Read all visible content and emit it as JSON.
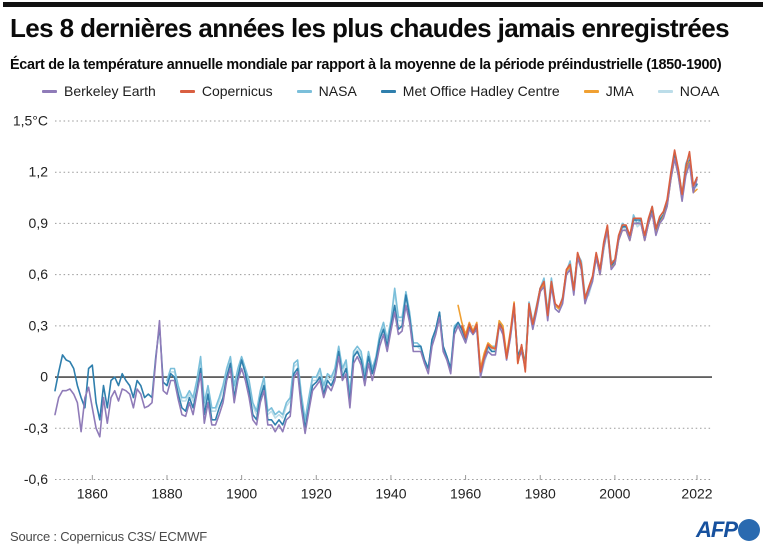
{
  "footer": {
    "source": "Source : Copernicus C3S/ ECMWF",
    "logo_text": "AFP"
  },
  "colors": {
    "grid": "#9a9a9a",
    "zero_line": "#2b2b2b",
    "tick_text": "#222222",
    "afp_blue": "#2a6ab0"
  },
  "chart_data": {
    "type": "line",
    "title": "Les 8 dernières années les plus chaudes jamais enregistrées",
    "subtitle": "Écart de la température annuelle mondiale par rapport à la moyenne de la période préindustrielle (1850-1900)",
    "unit": "°C",
    "x_range": [
      1850,
      2022
    ],
    "y_range": [
      -0.6,
      1.5
    ],
    "grid": "dotted-horizontal",
    "legend_position": "top",
    "y_ticks": [
      {
        "value": 1.5,
        "label": "1,5°C"
      },
      {
        "value": 1.2,
        "label": "1,2"
      },
      {
        "value": 0.9,
        "label": "0,9"
      },
      {
        "value": 0.6,
        "label": "0,6"
      },
      {
        "value": 0.3,
        "label": "0,3"
      },
      {
        "value": 0,
        "label": "0"
      },
      {
        "value": -0.3,
        "label": "-0,3"
      },
      {
        "value": -0.6,
        "label": "-0,6"
      }
    ],
    "x_ticks": [
      {
        "value": 1860,
        "label": "1860"
      },
      {
        "value": 1880,
        "label": "1880"
      },
      {
        "value": 1900,
        "label": "1900"
      },
      {
        "value": 1920,
        "label": "1920"
      },
      {
        "value": 1940,
        "label": "1940"
      },
      {
        "value": 1960,
        "label": "1960"
      },
      {
        "value": 1980,
        "label": "1980"
      },
      {
        "value": 2000,
        "label": "2000"
      },
      {
        "value": 2022,
        "label": "2022"
      }
    ],
    "draw_order": [
      "NOAA",
      "NASA",
      "Met Office Hadley Centre",
      "JMA",
      "Berkeley Earth",
      "Copernicus"
    ],
    "series": [
      {
        "name": "Berkeley Earth",
        "color": "#8f7bb8",
        "start_year": 1850,
        "values": [
          -0.22,
          -0.12,
          -0.08,
          -0.08,
          -0.07,
          -0.1,
          -0.15,
          -0.32,
          -0.12,
          -0.06,
          -0.18,
          -0.3,
          -0.35,
          -0.12,
          -0.27,
          -0.12,
          -0.08,
          -0.14,
          -0.07,
          -0.08,
          -0.1,
          -0.18,
          -0.07,
          -0.1,
          -0.18,
          -0.17,
          -0.15,
          0.1,
          0.33,
          -0.08,
          -0.1,
          -0.02,
          -0.02,
          -0.13,
          -0.22,
          -0.23,
          -0.15,
          -0.22,
          -0.1,
          0.02,
          -0.27,
          -0.15,
          -0.28,
          -0.28,
          -0.22,
          -0.15,
          -0.02,
          0.05,
          -0.15,
          -0.02,
          0.05,
          -0.02,
          -0.12,
          -0.25,
          -0.28,
          -0.15,
          -0.08,
          -0.28,
          -0.28,
          -0.32,
          -0.28,
          -0.32,
          -0.25,
          -0.23,
          0.0,
          0.03,
          -0.18,
          -0.33,
          -0.2,
          -0.08,
          -0.05,
          -0.02,
          -0.12,
          -0.05,
          -0.08,
          -0.02,
          0.12,
          -0.02,
          0.02,
          -0.18,
          0.08,
          0.12,
          0.07,
          -0.05,
          0.08,
          -0.02,
          0.07,
          0.18,
          0.25,
          0.15,
          0.27,
          0.38,
          0.25,
          0.27,
          0.42,
          0.32,
          0.15,
          0.15,
          0.15,
          0.08,
          0.02,
          0.18,
          0.25,
          0.35,
          0.15,
          0.1,
          0.02,
          0.25,
          0.3,
          0.25,
          0.2,
          0.28,
          0.25,
          0.28,
          0.0,
          0.1,
          0.15,
          0.13,
          0.13,
          0.3,
          0.25,
          0.1,
          0.23,
          0.4,
          0.1,
          0.15,
          0.05,
          0.4,
          0.28,
          0.38,
          0.5,
          0.53,
          0.33,
          0.53,
          0.4,
          0.38,
          0.43,
          0.6,
          0.63,
          0.48,
          0.7,
          0.63,
          0.43,
          0.5,
          0.56,
          0.7,
          0.6,
          0.76,
          0.86,
          0.63,
          0.66,
          0.8,
          0.86,
          0.86,
          0.8,
          0.9,
          0.9,
          0.9,
          0.8,
          0.9,
          0.96,
          0.83,
          0.9,
          0.93,
          1.0,
          1.16,
          1.28,
          1.18,
          1.03,
          1.18,
          1.25,
          1.08,
          1.16
        ]
      },
      {
        "name": "Copernicus",
        "color": "#d95f41",
        "start_year": 1959,
        "values": [
          0.3,
          0.23,
          0.31,
          0.26,
          0.31,
          0.03,
          0.12,
          0.19,
          0.17,
          0.17,
          0.31,
          0.28,
          0.11,
          0.26,
          0.43,
          0.08,
          0.19,
          0.03,
          0.43,
          0.31,
          0.41,
          0.52,
          0.56,
          0.36,
          0.56,
          0.43,
          0.41,
          0.46,
          0.63,
          0.66,
          0.51,
          0.73,
          0.66,
          0.46,
          0.53,
          0.59,
          0.73,
          0.63,
          0.79,
          0.89,
          0.66,
          0.69,
          0.83,
          0.89,
          0.89,
          0.83,
          0.93,
          0.93,
          0.93,
          0.83,
          0.93,
          1.0,
          0.87,
          0.94,
          0.97,
          1.04,
          1.2,
          1.33,
          1.22,
          1.07,
          1.23,
          1.32,
          1.12,
          1.17
        ]
      },
      {
        "name": "NASA",
        "color": "#7bbfda",
        "start_year": 1880,
        "values": [
          -0.02,
          0.05,
          0.05,
          -0.05,
          -0.12,
          -0.12,
          -0.08,
          -0.12,
          -0.02,
          0.12,
          -0.15,
          -0.05,
          -0.18,
          -0.18,
          -0.12,
          -0.05,
          0.05,
          0.12,
          -0.05,
          0.05,
          0.12,
          0.05,
          -0.02,
          -0.15,
          -0.2,
          -0.08,
          0.0,
          -0.2,
          -0.18,
          -0.22,
          -0.2,
          -0.22,
          -0.15,
          -0.12,
          0.08,
          0.1,
          -0.1,
          -0.25,
          -0.12,
          0.0,
          0.0,
          0.05,
          -0.05,
          0.02,
          0.0,
          0.05,
          0.18,
          0.05,
          0.1,
          -0.1,
          0.15,
          0.18,
          0.15,
          0.02,
          0.15,
          0.05,
          0.12,
          0.25,
          0.32,
          0.22,
          0.33,
          0.52,
          0.35,
          0.35,
          0.5,
          0.38,
          0.2,
          0.2,
          0.18,
          0.1,
          0.05,
          0.22,
          0.28,
          0.38,
          0.18,
          0.12,
          0.05,
          0.3,
          0.32,
          0.28,
          0.22,
          0.3,
          0.27,
          0.3,
          0.02,
          0.1,
          0.18,
          0.18,
          0.18,
          0.32,
          0.28,
          0.12,
          0.25,
          0.42,
          0.12,
          0.18,
          0.08,
          0.44,
          0.32,
          0.42,
          0.52,
          0.58,
          0.38,
          0.58,
          0.42,
          0.4,
          0.47,
          0.62,
          0.68,
          0.52,
          0.72,
          0.68,
          0.48,
          0.5,
          0.58,
          0.72,
          0.62,
          0.76,
          0.88,
          0.68,
          0.68,
          0.82,
          0.9,
          0.88,
          0.82,
          0.95,
          0.9,
          0.92,
          0.82,
          0.92,
          1.0,
          0.88,
          0.92,
          0.95,
          1.03,
          1.18,
          1.3,
          1.22,
          1.07,
          1.25,
          1.3,
          1.12,
          1.17
        ]
      },
      {
        "name": "Met Office Hadley Centre",
        "color": "#2f7fad",
        "start_year": 1850,
        "values": [
          -0.08,
          0.03,
          0.13,
          0.1,
          0.09,
          0.05,
          -0.05,
          -0.12,
          -0.18,
          0.05,
          0.07,
          -0.15,
          -0.25,
          -0.05,
          -0.18,
          -0.02,
          0.0,
          -0.05,
          0.02,
          -0.02,
          -0.05,
          -0.12,
          -0.02,
          -0.05,
          -0.12,
          -0.1,
          -0.12,
          0.12,
          0.3,
          -0.03,
          -0.05,
          0.02,
          0.0,
          -0.1,
          -0.18,
          -0.2,
          -0.12,
          -0.18,
          -0.08,
          0.05,
          -0.22,
          -0.1,
          -0.25,
          -0.25,
          -0.18,
          -0.12,
          0.0,
          0.08,
          -0.12,
          0.0,
          0.1,
          0.02,
          -0.08,
          -0.22,
          -0.25,
          -0.12,
          -0.05,
          -0.25,
          -0.25,
          -0.28,
          -0.25,
          -0.28,
          -0.22,
          -0.2,
          0.02,
          0.05,
          -0.15,
          -0.3,
          -0.18,
          -0.05,
          -0.03,
          0.0,
          -0.1,
          -0.02,
          -0.05,
          0.0,
          0.15,
          0.0,
          0.05,
          -0.15,
          0.12,
          0.15,
          0.1,
          -0.02,
          0.12,
          0.02,
          0.1,
          0.22,
          0.28,
          0.18,
          0.3,
          0.42,
          0.28,
          0.3,
          0.48,
          0.35,
          0.18,
          0.18,
          0.18,
          0.1,
          0.05,
          0.22,
          0.28,
          0.38,
          0.18,
          0.12,
          0.05,
          0.28,
          0.32,
          0.28,
          0.22,
          0.3,
          0.25,
          0.3,
          0.02,
          0.12,
          0.18,
          0.15,
          0.15,
          0.32,
          0.28,
          0.12,
          0.25,
          0.42,
          0.12,
          0.18,
          0.08,
          0.42,
          0.3,
          0.4,
          0.52,
          0.55,
          0.35,
          0.55,
          0.42,
          0.4,
          0.45,
          0.62,
          0.65,
          0.5,
          0.72,
          0.65,
          0.45,
          0.52,
          0.58,
          0.72,
          0.62,
          0.78,
          0.88,
          0.65,
          0.68,
          0.82,
          0.88,
          0.88,
          0.82,
          0.92,
          0.92,
          0.92,
          0.82,
          0.92,
          0.98,
          0.85,
          0.92,
          0.95,
          1.02,
          1.18,
          1.3,
          1.2,
          1.05,
          1.2,
          1.27,
          1.1,
          1.13
        ]
      },
      {
        "name": "JMA",
        "color": "#f0a032",
        "start_year": 1958,
        "values": [
          0.42,
          0.32,
          0.25,
          0.32,
          0.27,
          0.32,
          0.05,
          0.14,
          0.2,
          0.18,
          0.16,
          0.33,
          0.3,
          0.13,
          0.27,
          0.44,
          0.08,
          0.18,
          0.06,
          0.42,
          0.3,
          0.4,
          0.5,
          0.55,
          0.35,
          0.55,
          0.42,
          0.4,
          0.45,
          0.62,
          0.65,
          0.5,
          0.72,
          0.65,
          0.45,
          0.52,
          0.58,
          0.7,
          0.6,
          0.76,
          0.86,
          0.64,
          0.66,
          0.8,
          0.86,
          0.86,
          0.8,
          0.9,
          0.9,
          0.9,
          0.8,
          0.9,
          0.96,
          0.84,
          0.9,
          0.94,
          1.0,
          1.16,
          1.28,
          1.18,
          1.04,
          1.2,
          1.26,
          1.08,
          1.1
        ]
      },
      {
        "name": "NOAA",
        "color": "#bcdde9",
        "start_year": 1880,
        "values": [
          -0.04,
          0.03,
          0.03,
          -0.07,
          -0.14,
          -0.14,
          -0.1,
          -0.14,
          -0.04,
          0.1,
          -0.17,
          -0.07,
          -0.2,
          -0.2,
          -0.14,
          -0.07,
          0.03,
          0.1,
          -0.07,
          0.03,
          0.1,
          0.03,
          -0.04,
          -0.17,
          -0.22,
          -0.1,
          -0.02,
          -0.22,
          -0.2,
          -0.24,
          -0.22,
          -0.24,
          -0.17,
          -0.14,
          0.06,
          0.08,
          -0.12,
          -0.27,
          -0.14,
          -0.02,
          -0.02,
          0.03,
          -0.07,
          0.0,
          -0.02,
          0.03,
          0.16,
          0.03,
          0.08,
          -0.12,
          0.13,
          0.16,
          0.13,
          0.0,
          0.13,
          0.03,
          0.1,
          0.23,
          0.3,
          0.2,
          0.31,
          0.5,
          0.33,
          0.33,
          0.48,
          0.36,
          0.18,
          0.18,
          0.16,
          0.08,
          0.03,
          0.2,
          0.26,
          0.36,
          0.16,
          0.1,
          0.03,
          0.28,
          0.3,
          0.26,
          0.2,
          0.28,
          0.25,
          0.28,
          0.0,
          0.08,
          0.16,
          0.16,
          0.16,
          0.3,
          0.26,
          0.1,
          0.23,
          0.4,
          0.1,
          0.16,
          0.06,
          0.42,
          0.3,
          0.4,
          0.5,
          0.56,
          0.36,
          0.56,
          0.4,
          0.38,
          0.45,
          0.6,
          0.66,
          0.5,
          0.7,
          0.66,
          0.46,
          0.48,
          0.56,
          0.7,
          0.6,
          0.74,
          0.86,
          0.66,
          0.66,
          0.8,
          0.88,
          0.86,
          0.8,
          0.93,
          0.88,
          0.9,
          0.8,
          0.9,
          0.98,
          0.86,
          0.9,
          0.93,
          1.01,
          1.16,
          1.28,
          1.2,
          1.05,
          1.23,
          1.28,
          1.1,
          1.12
        ]
      }
    ]
  }
}
